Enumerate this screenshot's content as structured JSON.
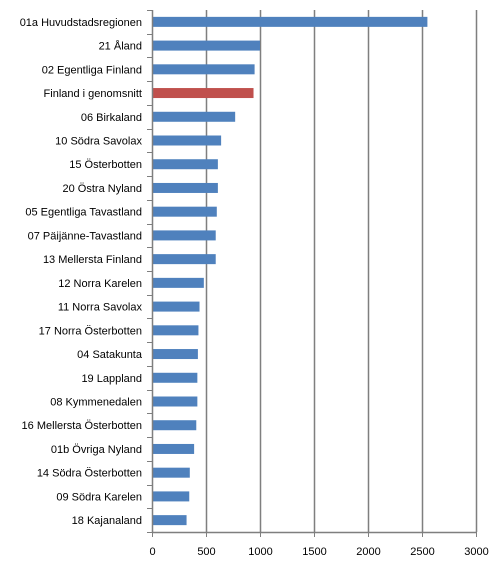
{
  "chart_data": {
    "type": "bar",
    "orientation": "horizontal",
    "title": "",
    "xlabel": "",
    "ylabel": "",
    "xlim": [
      0,
      3000
    ],
    "xticks": [
      0,
      500,
      1000,
      1500,
      2000,
      2500,
      3000
    ],
    "grid": "vertical major gridlines",
    "legend": "none",
    "bar_color": "#4f81bd",
    "highlight_color": "#c0504d",
    "axis_color": "#7f7f7f",
    "grid_color": "#7f7f7f",
    "highlight_category": "Finland i genomsnitt",
    "categories": [
      "01a Huvudstadsregionen",
      "21 Åland",
      "02 Egentliga Finland",
      "Finland i genomsnitt",
      "06 Birkaland",
      "10 Södra Savolax",
      "15 Österbotten",
      "20 Östra Nyland",
      "05 Egentliga Tavastland",
      "07 Päijänne-Tavastland",
      "13 Mellersta Finland",
      "12 Norra Karelen",
      "11 Norra Savolax",
      "17 Norra Österbotten",
      "04 Satakunta",
      "19 Lappland",
      "08 Kymmenedalen",
      "16 Mellersta Österbotten",
      "01b Övriga Nyland",
      "14 Södra Österbotten",
      "09 Södra Karelen",
      "18 Kajanaland"
    ],
    "values": [
      2550,
      1000,
      950,
      940,
      770,
      640,
      610,
      610,
      600,
      590,
      590,
      480,
      440,
      430,
      425,
      420,
      420,
      410,
      390,
      350,
      345,
      320
    ]
  }
}
